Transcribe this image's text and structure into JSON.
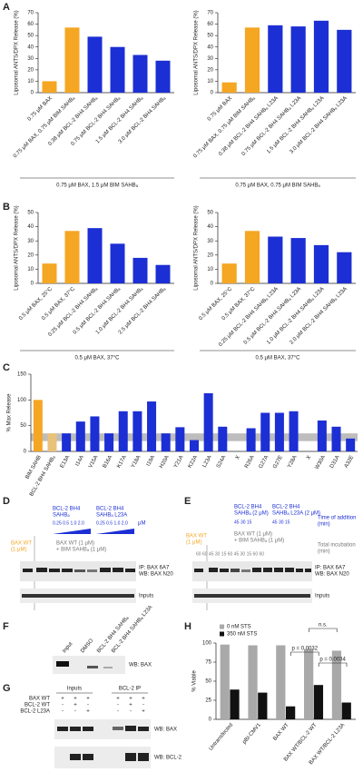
{
  "panels": [
    "A",
    "B",
    "C",
    "D",
    "E",
    "F",
    "G",
    "H"
  ],
  "chart_data": [
    {
      "type": "bar",
      "ylabel": "Liposomal ANTS/DPX Release (%)",
      "categories": [
        "0.75 μM BAX",
        "0.75 μM BAX, 0.75 μM BIM SAHBₐ",
        "0.38 μM BCL-2 BH4 SAHBₐ",
        "0.75 μM BCL-2 BH4 SAHBₐ",
        "1.5 μM BCL-2 BH4 SAHBₐ",
        "3.0 μM BCL-2 BH4 SAHBₐ"
      ],
      "values": [
        10,
        57,
        49,
        40,
        33,
        28
      ],
      "colors": [
        "#f5a623",
        "#f5a623",
        "#1c2fd4",
        "#1c2fd4",
        "#1c2fd4",
        "#1c2fd4"
      ],
      "ylim": [
        0,
        70
      ],
      "yticks": [
        0,
        10,
        20,
        30,
        40,
        50,
        60,
        70
      ],
      "group_label": "0.75 μM BAX, 1.5 μM BIM SAHBₐ"
    },
    {
      "type": "bar",
      "ylabel": "Liposomal ANTS/DPX Release (%)",
      "categories": [
        "0.75 μM BAX",
        "0.75 μM BAX, 0.75 μM BIM SAHBₐ",
        "0.38 μM BCL-2 BH4 SAHBₐ L23A",
        "0.75 μM BCL-2 BH4 SAHBₐ L23A",
        "1.5 μM BCL-2 BH4 SAHBₐ L23A",
        "3.0 μM BCL-2 BH4 SAHBₐ L23A"
      ],
      "values": [
        9,
        57,
        59,
        58,
        63,
        55
      ],
      "colors": [
        "#f5a623",
        "#f5a623",
        "#1c2fd4",
        "#1c2fd4",
        "#1c2fd4",
        "#1c2fd4"
      ],
      "ylim": [
        0,
        70
      ],
      "yticks": [
        0,
        10,
        20,
        30,
        40,
        50,
        60,
        70
      ],
      "group_label": "0.75 μM BAX, 0.75 μM BIM SAHBₐ"
    },
    {
      "type": "bar",
      "ylabel": "Liposomal ANTS/DPX Release (%)",
      "categories": [
        "0.5 μM BAX, 25°C",
        "0.5 μM BAX, 37°C",
        "0.25 μM BCL-2 BH4 SAHBₐ",
        "0.5 μM BCL-2 BH4 SAHBₐ",
        "1.0 μM BCL-2 BH4 SAHBₐ",
        "2.5 μM BCL-2 BH4 SAHBₐ"
      ],
      "values": [
        14,
        37,
        39,
        28,
        18,
        13
      ],
      "colors": [
        "#f5a623",
        "#f5a623",
        "#1c2fd4",
        "#1c2fd4",
        "#1c2fd4",
        "#1c2fd4"
      ],
      "ylim": [
        0,
        50
      ],
      "yticks": [
        0,
        10,
        20,
        30,
        40,
        50
      ],
      "group_label": "0.5 μM BAX, 37°C"
    },
    {
      "type": "bar",
      "ylabel": "Liposomal ANTS/DPX Release (%)",
      "categories": [
        "0.5 μM BAX, 25°C",
        "0.5 μM BAX, 37°C",
        "0.25 μM BCL-2 BH4 SAHBₐ L23A",
        "0.5 μM BCL-2 BH4 SAHBₐ L23A",
        "1.0 μM BCL-2 BH4 SAHBₐ L23A",
        "2.0 μM BCL-2 BH4 SAHBₐ L23A"
      ],
      "values": [
        14,
        37,
        33,
        32,
        27,
        22
      ],
      "colors": [
        "#f5a623",
        "#f5a623",
        "#1c2fd4",
        "#1c2fd4",
        "#1c2fd4",
        "#1c2fd4"
      ],
      "ylim": [
        0,
        50
      ],
      "yticks": [
        0,
        10,
        20,
        30,
        40,
        50
      ],
      "group_label": "0.5 μM BAX, 37°C"
    },
    {
      "type": "bar",
      "ylabel": "% Max Release",
      "categories": [
        "BIM SAHB",
        "BCL-2 BH4 SAHBₐ",
        "E13A",
        "I14A",
        "V15A",
        "B16A",
        "K17A",
        "Y18A",
        "I19A",
        "H20A",
        "Y21A",
        "K22A",
        "L23A",
        "S24A",
        "X",
        "R26A",
        "G27A",
        "G27E",
        "Y28A",
        "X",
        "W30A",
        "D31A",
        "A32E"
      ],
      "values": [
        100,
        35,
        35,
        58,
        68,
        35,
        78,
        78,
        97,
        35,
        47,
        22,
        113,
        48,
        null,
        45,
        75,
        75,
        78,
        null,
        60,
        48,
        25
      ],
      "colors": [
        "#f5a623",
        "#e9c27a",
        "#1c2fd4",
        "#1c2fd4",
        "#1c2fd4",
        "#1c2fd4",
        "#1c2fd4",
        "#1c2fd4",
        "#1c2fd4",
        "#1c2fd4",
        "#1c2fd4",
        "#1c2fd4",
        "#1c2fd4",
        "#1c2fd4",
        "#1c2fd4",
        "#1c2fd4",
        "#1c2fd4",
        "#1c2fd4",
        "#1c2fd4",
        "#1c2fd4",
        "#1c2fd4",
        "#1c2fd4",
        "#1c2fd4"
      ],
      "reference_band": [
        20,
        35
      ],
      "band_color": "#bdbdbd",
      "ylim": [
        0,
        150
      ],
      "yticks": [
        0,
        50,
        100,
        150
      ]
    },
    {
      "type": "grouped_bar",
      "ylabel": "% Viable",
      "categories": [
        "Untransfected",
        "pBI-CMV1",
        "BAX WT",
        "BAX WT/BCL-2 WT",
        "BAX WT/BCL-2 L23A"
      ],
      "series": [
        {
          "name": "0 nM STS",
          "color": "#a9a9a9",
          "values": [
            98,
            97,
            97,
            92,
            90
          ]
        },
        {
          "name": "350 nM STS",
          "color": "#111111",
          "values": [
            39,
            35,
            17,
            45,
            22
          ]
        }
      ],
      "ylim": [
        0,
        100
      ],
      "yticks": [
        0,
        25,
        50,
        75,
        100
      ],
      "legend": "upper left",
      "annotations": [
        "n.s.",
        "p = 0.0032",
        "p = 0.0034"
      ]
    }
  ],
  "blots": {
    "d": {
      "header": [
        "BCL-2 BH4",
        "SAHBₐ",
        "BCL-2 BH4",
        "SAHBₐ L23A"
      ],
      "conc1": "0.25  0.5  1.0  2.0",
      "conc2": "0.25  0.5  1.0  2.0",
      "unit": "μM",
      "bax": [
        "BAX WT",
        "(1 μM)"
      ],
      "baxbim": [
        "BAX WT (1 μM)",
        "+ BIM SAHBₐ (1 μM)"
      ],
      "ip": [
        "IP: BAX 6A7",
        "WB: BAX N20"
      ],
      "inputs": "Inputs"
    },
    "e": {
      "header": [
        "BCL-2 BH4",
        "SAHBₐ (2 μM)",
        "BCL-2 BH4",
        "SAHBₐ L23A (2 μM)"
      ],
      "time": [
        "Time of addition",
        "(min)"
      ],
      "t1": "45  30  15",
      "t2": "45  30  15",
      "bax": [
        "BAX WT",
        "(1 μM)"
      ],
      "baxbim": [
        "BAX WT (1 μM)",
        "+ BIM SAHBₐ (1 μM)"
      ],
      "total": [
        "Total incubation",
        "(min)"
      ],
      "totals": "60   60   45   30   15   60   45   30   15   60   60",
      "ip": [
        "IP: BAX 6A7",
        "WB: BAX N20"
      ],
      "inputs": "Inputs"
    },
    "f": {
      "lanes": [
        "Input",
        "DMSO",
        "BCL-2 BH4 SAHBₐ",
        "BCL-2 BH4 SAHBₐ L23A"
      ],
      "wb": "WB: BAX"
    },
    "g": {
      "groups": [
        "Inputs",
        "BCL-2 IP"
      ],
      "rows": [
        "BAX WT",
        "BCL-2 WT",
        "BCL-2 L23A"
      ],
      "signs": [
        [
          "+",
          "+",
          "+",
          "+",
          "+",
          "+"
        ],
        [
          "-",
          "+",
          "-",
          "-",
          "+",
          "-"
        ],
        [
          "-",
          "-",
          "+",
          "-",
          "-",
          "+"
        ]
      ],
      "wb": [
        "WB: BAX",
        "WB: BCL-2"
      ]
    }
  }
}
